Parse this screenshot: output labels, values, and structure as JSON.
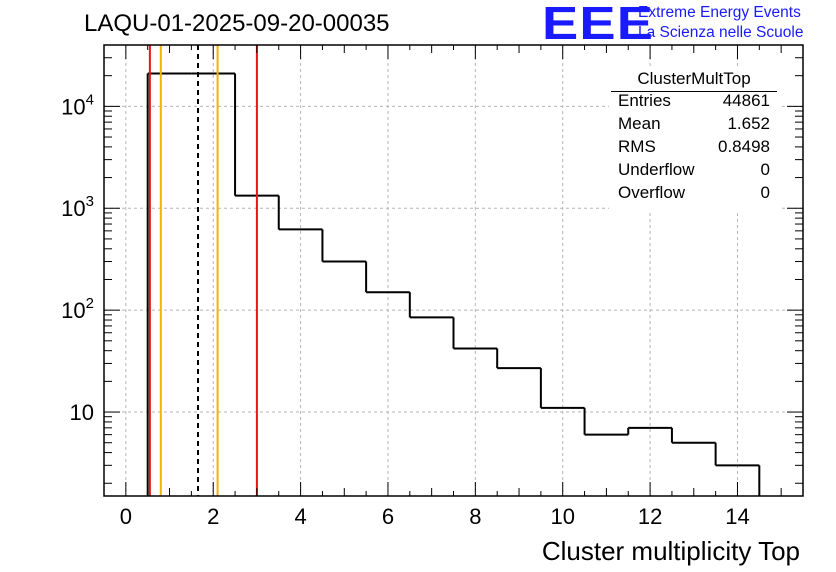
{
  "page_title": "LAQU-01-2025-09-20-00035",
  "logo": {
    "mark": "EEE",
    "line1": "Extreme Energy Events",
    "line2": "La Scienza nelle Scuole",
    "color": "#1a1aff"
  },
  "stats": {
    "title": "ClusterMultTop",
    "rows": [
      {
        "label": "Entries",
        "value": "44861"
      },
      {
        "label": "Mean",
        "value": "1.652"
      },
      {
        "label": "RMS",
        "value": "0.8498"
      },
      {
        "label": "Underflow",
        "value": "0"
      },
      {
        "label": "Overflow",
        "value": "0"
      }
    ]
  },
  "chart_data": {
    "type": "histogram",
    "title": "LAQU-01-2025-09-20-00035",
    "xlabel": "Cluster multiplicity Top",
    "ylabel": "",
    "xlim": [
      -0.5,
      15.5
    ],
    "ylim": [
      1.5,
      40000
    ],
    "yscale": "log",
    "grid": true,
    "bin_width": 1,
    "bin_centers": [
      1,
      2,
      3,
      4,
      5,
      6,
      7,
      8,
      9,
      10,
      11,
      12,
      13,
      14
    ],
    "counts": [
      21000,
      21000,
      1330,
      620,
      300,
      150,
      85,
      42,
      27,
      11,
      6,
      7,
      5,
      3
    ],
    "x_ticks": [
      "0",
      "2",
      "4",
      "6",
      "8",
      "10",
      "12",
      "14"
    ],
    "x_tick_values": [
      0,
      2,
      4,
      6,
      8,
      10,
      12,
      14
    ],
    "y_ticks": [
      {
        "value": 10,
        "base": "10",
        "exp": ""
      },
      {
        "value": 100,
        "base": "10",
        "exp": "2"
      },
      {
        "value": 1000,
        "base": "10",
        "exp": "3"
      },
      {
        "value": 10000,
        "base": "10",
        "exp": "4"
      }
    ],
    "reference_lines": [
      {
        "x": 0.55,
        "color": "#e8141e",
        "style": "solid"
      },
      {
        "x": 0.8,
        "color": "#f2b400",
        "style": "solid"
      },
      {
        "x": 1.652,
        "color": "#000000",
        "style": "dashed"
      },
      {
        "x": 2.1,
        "color": "#f2b400",
        "style": "solid"
      },
      {
        "x": 3.0,
        "color": "#e8141e",
        "style": "solid"
      }
    ]
  }
}
